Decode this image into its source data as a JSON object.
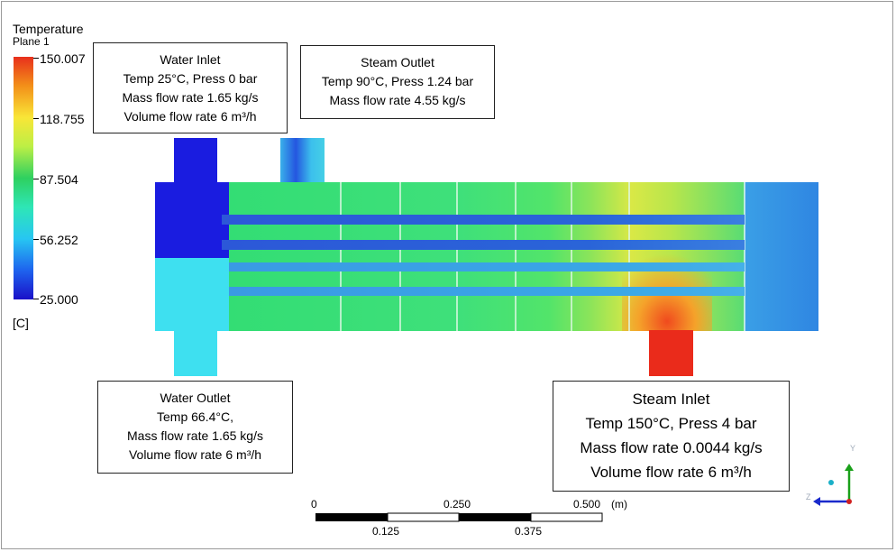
{
  "legend": {
    "title": "Temperature",
    "subtitle": "Plane 1",
    "unit": "[C]",
    "ticks": [
      "150.007",
      "118.755",
      "87.504",
      "56.252",
      "25.000"
    ],
    "min": 25.0,
    "max": 150.007
  },
  "callouts": {
    "water_inlet": [
      "Water Inlet",
      "Temp 25°C, Press 0 bar",
      "Mass flow rate 1.65 kg/s",
      "Volume flow rate 6 m³/h"
    ],
    "steam_outlet": [
      "Steam Outlet",
      "Temp 90°C, Press 1.24 bar",
      "Mass flow rate 4.55 kg/s"
    ],
    "water_outlet": [
      "Water Outlet",
      "Temp 66.4°C,",
      "Mass flow rate 1.65 kg/s",
      "Volume flow rate 6 m³/h"
    ],
    "steam_inlet": [
      "Steam Inlet",
      "Temp 150°C, Press 4 bar",
      "Mass flow rate 0.0044 kg/s",
      "Volume flow rate 6 m³/h"
    ]
  },
  "scale_bar": {
    "top_labels": [
      "0",
      "0.250",
      "0.500"
    ],
    "bottom_labels": [
      "0.125",
      "0.375"
    ],
    "unit": "(m)"
  },
  "axes": {
    "y": "Y",
    "z": "Z"
  },
  "colors": {
    "hot": "#ea2b1b",
    "warm": "#f3d23a",
    "mid": "#3ed96a",
    "cool": "#36d4e8",
    "cold": "#1a14c8",
    "tube": "#2a6ad6"
  }
}
